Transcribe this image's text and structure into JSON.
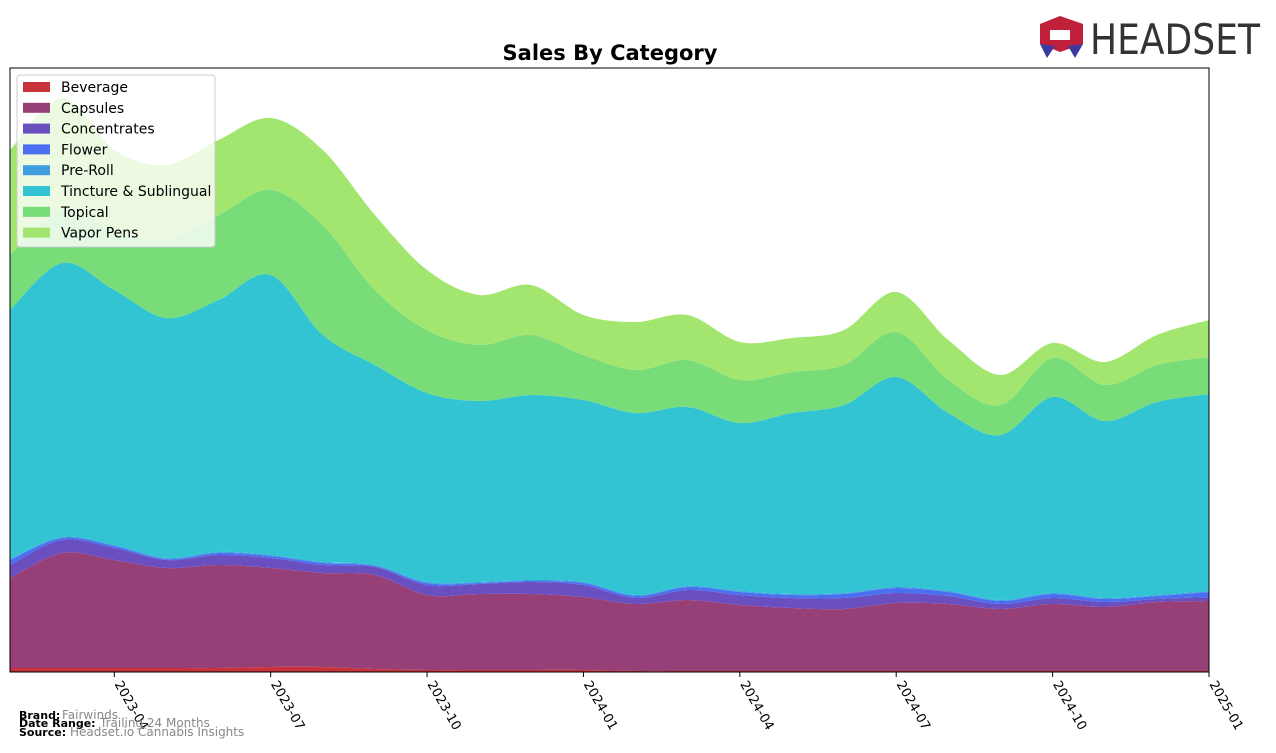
{
  "chart_data": {
    "type": "stacked_area",
    "title": "Sales By Category",
    "x": [
      "2023-02",
      "2023-03",
      "2023-04",
      "2023-05",
      "2023-06",
      "2023-07",
      "2023-08",
      "2023-09",
      "2023-10",
      "2023-11",
      "2023-12",
      "2024-01",
      "2024-02",
      "2024-03",
      "2024-04",
      "2024-05",
      "2024-06",
      "2024-07",
      "2024-08",
      "2024-09",
      "2024-10",
      "2024-11",
      "2024-12",
      "2025-01"
    ],
    "xticks": [
      "2023-04",
      "2023-07",
      "2023-10",
      "2024-01",
      "2024-04",
      "2024-07",
      "2024-10",
      "2025-01"
    ],
    "legend": "upper left",
    "series": [
      {
        "name": "Beverage",
        "color": "#c8323a",
        "values": [
          4,
          4,
          4,
          4,
          4,
          5,
          5,
          3,
          2,
          2,
          2,
          2,
          1,
          1,
          1,
          1,
          1,
          1,
          1,
          1,
          1,
          1,
          1,
          1
        ]
      },
      {
        "name": "Capsules",
        "color": "#973f77",
        "values": [
          90,
          115,
          108,
          100,
          103,
          99,
          94,
          94,
          75,
          76,
          76,
          73,
          67,
          71,
          66,
          63,
          62,
          68,
          67,
          62,
          67,
          64,
          69,
          70
        ]
      },
      {
        "name": "Concentrates",
        "color": "#6a4fc0",
        "values": [
          13,
          13,
          12,
          8,
          10,
          10,
          8,
          8,
          10,
          10,
          12,
          12,
          6,
          10,
          10,
          10,
          11,
          10,
          8,
          5,
          6,
          5,
          3,
          4
        ]
      },
      {
        "name": "Flower",
        "color": "#4a6ff0",
        "values": [
          5,
          2,
          2,
          1,
          2,
          2,
          2,
          1,
          2,
          1,
          1,
          2,
          2,
          3,
          3,
          3,
          4,
          5,
          4,
          3,
          4,
          3,
          3,
          5
        ]
      },
      {
        "name": "Pre-Roll",
        "color": "#3f9ee0",
        "values": [
          1,
          1,
          1,
          1,
          1,
          1,
          1,
          1,
          1,
          1,
          1,
          1,
          1,
          1,
          1,
          1,
          1,
          1,
          1,
          1,
          1,
          1,
          1,
          1
        ]
      },
      {
        "name": "Tincture & Sublingual",
        "color": "#33c4d4",
        "values": [
          249,
          274,
          255,
          240,
          252,
          280,
          227,
          200,
          189,
          181,
          185,
          182,
          182,
          179,
          168,
          181,
          188,
          210,
          178,
          165,
          196,
          177,
          193,
          197
        ]
      },
      {
        "name": "Topical",
        "color": "#78dc78",
        "values": [
          55,
          53,
          60,
          78,
          85,
          85,
          110,
          75,
          63,
          56,
          60,
          45,
          43,
          47,
          43,
          41,
          40,
          45,
          33,
          30,
          39,
          36,
          37,
          37
        ]
      },
      {
        "name": "Vapor Pens",
        "color": "#a2e670",
        "values": [
          105,
          112,
          80,
          75,
          75,
          72,
          75,
          75,
          60,
          50,
          50,
          40,
          48,
          45,
          38,
          34,
          35,
          40,
          40,
          30,
          15,
          23,
          30,
          37
        ]
      }
    ]
  },
  "logo_text": "HEADSET",
  "footer": {
    "brand_label": "Brand:",
    "brand": "Fairwinds",
    "range_label": "Date Range:",
    "range": "Trailing 24 Months",
    "source_label": "Source:",
    "source": "Headset.io Cannabis Insights"
  }
}
